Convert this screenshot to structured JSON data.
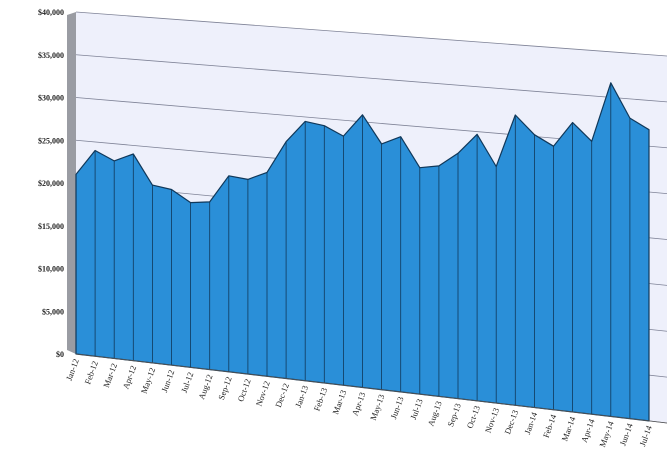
{
  "chart_data": {
    "type": "area",
    "title": "",
    "xlabel": "",
    "ylabel": "",
    "ylim": [
      0,
      40000
    ],
    "grid": true,
    "y_ticks": [
      "$0",
      "$5,000",
      "$10,000",
      "$15,000",
      "$20,000",
      "$25,000",
      "$30,000",
      "$35,000",
      "$40,000"
    ],
    "y_tick_values": [
      0,
      5000,
      10000,
      15000,
      20000,
      25000,
      30000,
      35000,
      40000
    ],
    "categories": [
      "Jan-12",
      "Feb-12",
      "Mar-12",
      "Apr-12",
      "May-12",
      "Jun-12",
      "Jul-12",
      "Aug-12",
      "Sep-12",
      "Oct-12",
      "Nov-12",
      "Dec-12",
      "Jan-13",
      "Feb-13",
      "Mar-13",
      "Apr-13",
      "May-13",
      "Jun-13",
      "Jul-13",
      "Aug-13",
      "Sep-13",
      "Oct-13",
      "Nov-13",
      "Dec-13",
      "Jan-14",
      "Feb-14",
      "Mar-14",
      "Apr-14",
      "May-14",
      "Jun-14",
      "Jul-14"
    ],
    "x_labels": [
      "Jan-12",
      "Feb-12",
      "Mar-12",
      "Apr-12",
      "May-12",
      "Jun-12",
      "Jul-12",
      "Aug-12",
      "Sep-12",
      "Oct-12",
      "Nov-12",
      "Dec-12",
      "Jan-13",
      "Feb-13",
      "Mar-13",
      "Apr-13",
      "May-13",
      "Jun-13",
      "Jul-13",
      "Aug-13",
      "Sep-13",
      "Oct-13",
      "Nov-13",
      "Dec-13",
      "Jan-14",
      "Feb-14",
      "Mar-14",
      "Apr-14",
      "May-14",
      "Jun-14",
      "Jul-14"
    ],
    "values": [
      21000,
      24000,
      23000,
      24000,
      20600,
      20300,
      19000,
      19300,
      22500,
      22300,
      23300,
      27000,
      29500,
      29200,
      28200,
      30800,
      27700,
      28700,
      25400,
      25800,
      27400,
      29700,
      26300,
      32200,
      30200,
      29100,
      31900,
      30000,
      36600,
      32900,
      31800
    ],
    "colors": {
      "fill": "#2a8fd8",
      "stroke": "#10385a",
      "plot_bg": "#eef0fb",
      "grid": "#7e8296",
      "wall": "#9a9ca3"
    }
  }
}
